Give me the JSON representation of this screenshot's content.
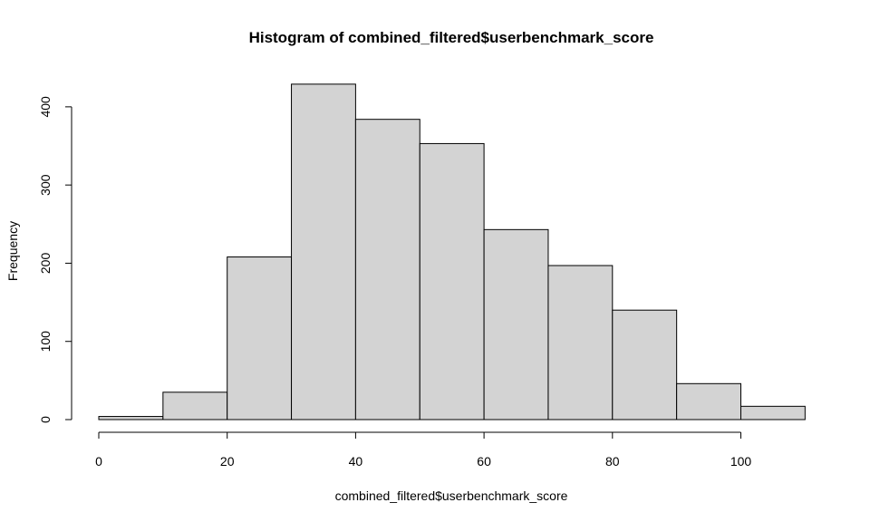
{
  "chart_data": {
    "type": "bar",
    "title": "Histogram of combined_filtered$userbenchmark_score",
    "xlabel": "combined_filtered$userbenchmark_score",
    "ylabel": "Frequency",
    "bin_edges": [
      0,
      10,
      20,
      30,
      40,
      50,
      60,
      70,
      80,
      90,
      100,
      110
    ],
    "values": [
      4,
      35,
      208,
      429,
      384,
      353,
      243,
      197,
      140,
      46,
      17
    ],
    "xlim": [
      0,
      110
    ],
    "ylim": [
      0,
      430
    ],
    "x_ticks": [
      0,
      20,
      40,
      60,
      80,
      100
    ],
    "y_ticks": [
      0,
      100,
      200,
      300,
      400
    ],
    "bar_color": "#d3d3d3",
    "grid": false
  }
}
